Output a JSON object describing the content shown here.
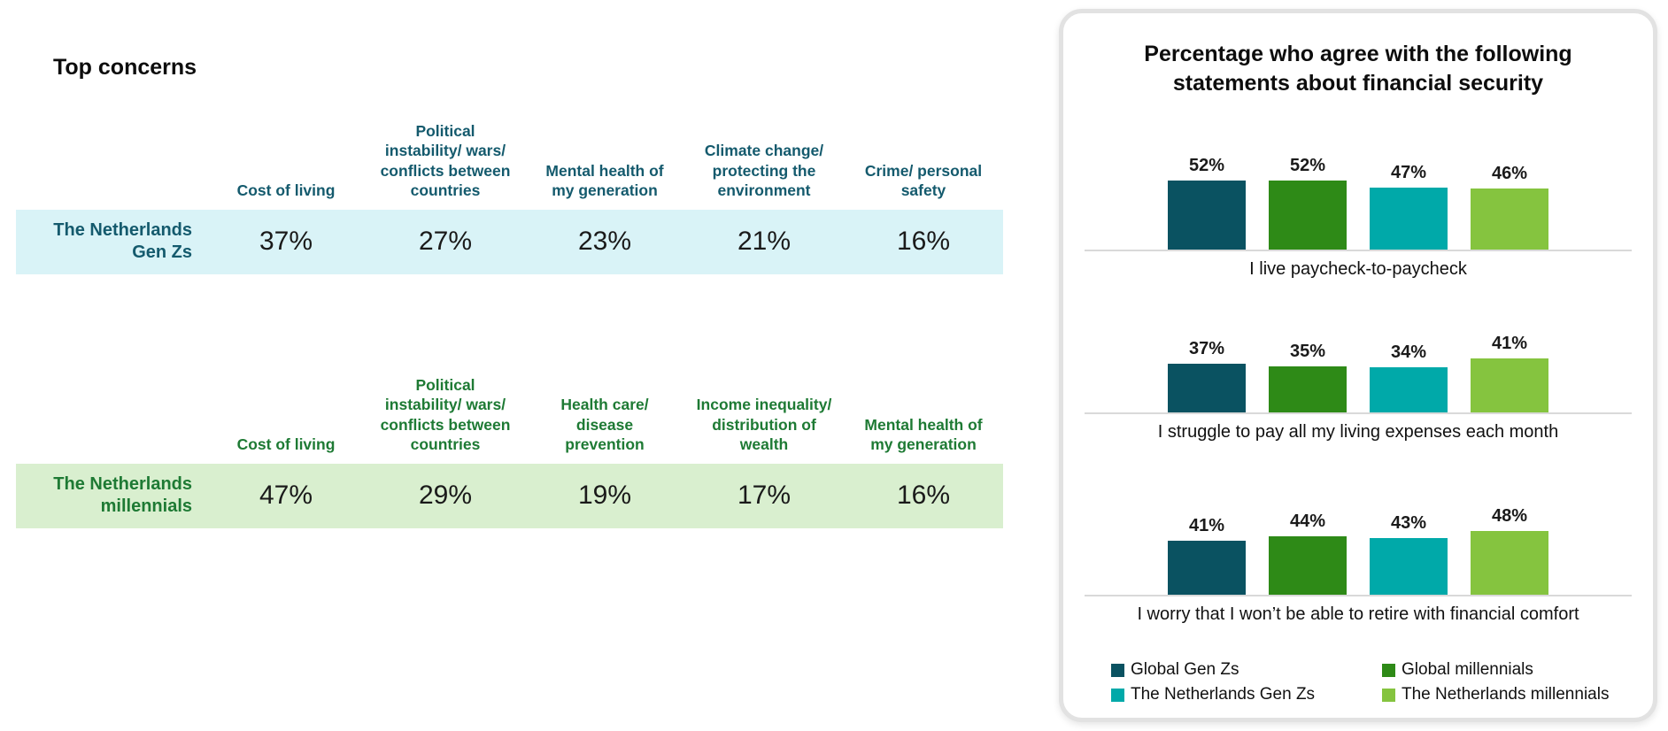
{
  "chart_data": [
    {
      "type": "table",
      "title": "Top concerns",
      "row_label": "The Netherlands Gen Zs",
      "columns": [
        "Cost of living",
        "Political instability/ wars/ conflicts between countries",
        "Mental health of my generation",
        "Climate change/ protecting the environment",
        "Crime/ personal safety"
      ],
      "values": [
        "37%",
        "27%",
        "23%",
        "21%",
        "16%"
      ],
      "header_text_color": "#145a6d",
      "row_label_color": "#145a6d",
      "row_bg_color": "#d9f3f7"
    },
    {
      "type": "table",
      "row_label": "The Netherlands millennials",
      "columns": [
        "Cost of living",
        "Political instability/ wars/ conflicts between countries",
        "Health care/ disease prevention",
        "Income inequality/ distribution of wealth",
        "Mental health of my generation"
      ],
      "values": [
        "47%",
        "29%",
        "19%",
        "17%",
        "16%"
      ],
      "header_text_color": "#1e7a34",
      "row_label_color": "#1e7a34",
      "row_bg_color": "#d9efcf"
    },
    {
      "type": "bar",
      "title": "Percentage who agree with the following statements about financial security",
      "value_suffix": "%",
      "ylim": [
        0,
        60
      ],
      "grid": false,
      "legend_position": "bottom",
      "axis_line_color": "#d9d9d9",
      "categories": [
        "I live paycheck-to-paycheck",
        "I struggle to pay all my living expenses each month",
        "I worry that I won’t be able to retire with financial comfort"
      ],
      "series": [
        {
          "name": "Global Gen Zs",
          "color": "#0a5261",
          "values": [
            52,
            37,
            41
          ]
        },
        {
          "name": "Global millennials",
          "color": "#2e8a17",
          "values": [
            52,
            35,
            44
          ]
        },
        {
          "name": "The Netherlands Gen Zs",
          "color": "#00a9a9",
          "values": [
            47,
            34,
            43
          ]
        },
        {
          "name": "The Netherlands millennials",
          "color": "#85c43f",
          "values": [
            46,
            41,
            48
          ]
        }
      ]
    }
  ]
}
